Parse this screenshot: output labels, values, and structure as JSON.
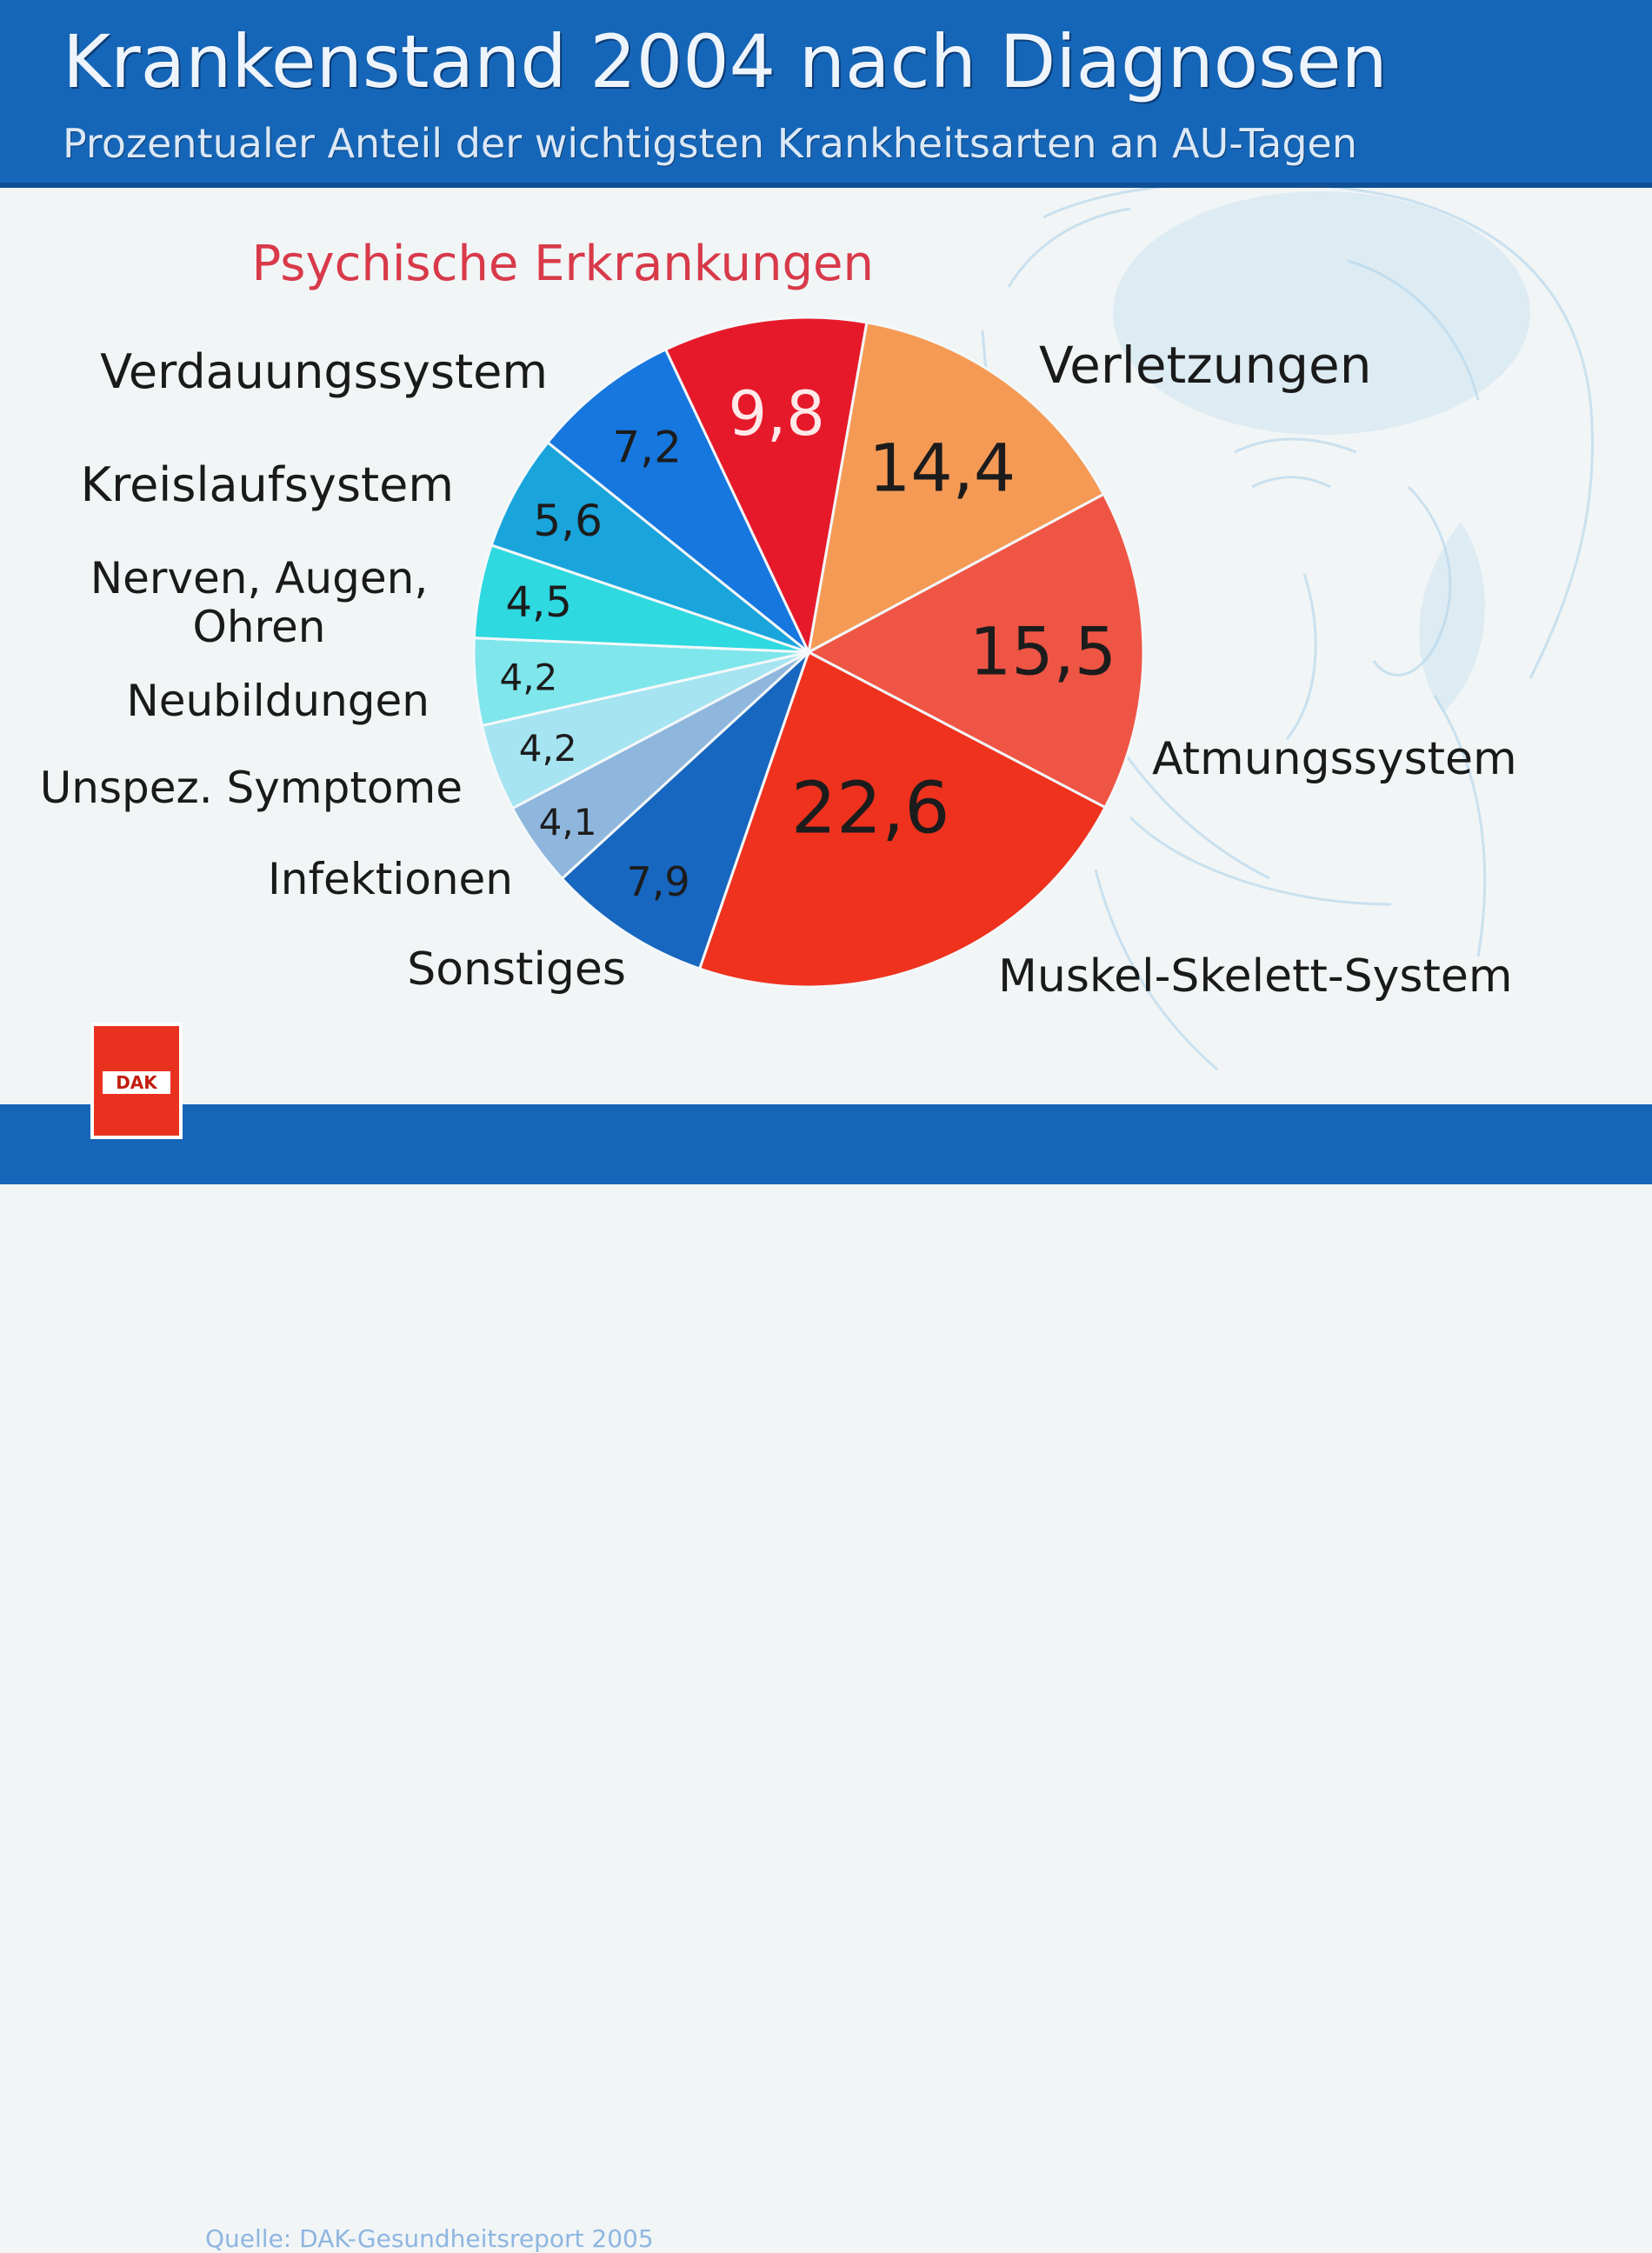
{
  "header": {
    "title": "Krankenstand 2004 nach Diagnosen",
    "subtitle": "Prozentualer Anteil der wichtigsten Krankheitsarten an AU-Tagen"
  },
  "footer": {
    "source": "Quelle: DAK-Gesundheitsreport 2005",
    "logo": "DAK"
  },
  "colors": {
    "header": "#1566b8",
    "highlight_label": "#d83a4a"
  },
  "chart_data": {
    "type": "pie",
    "title": "Krankenstand 2004 nach Diagnosen",
    "subtitle": "Prozentualer Anteil der wichtigsten Krankheitsarten an AU-Tagen",
    "slices": [
      {
        "label": "Verletzungen",
        "value": 14.4,
        "value_label": "14,4",
        "color": "#f59a55"
      },
      {
        "label": "Atmungssystem",
        "value": 15.5,
        "value_label": "15,5",
        "color": "#ef5545"
      },
      {
        "label": "Muskel-Skelett-System",
        "value": 22.6,
        "value_label": "22,6",
        "color": "#ee321e"
      },
      {
        "label": "Sonstiges",
        "value": 7.9,
        "value_label": "7,9",
        "color": "#1767c0"
      },
      {
        "label": "Infektionen",
        "value": 4.1,
        "value_label": "4,1",
        "color": "#8fb7dd"
      },
      {
        "label": "Unspez. Symptome",
        "value": 4.2,
        "value_label": "4,2",
        "color": "#a5e4f0"
      },
      {
        "label": "Neubildungen",
        "value": 4.2,
        "value_label": "4,2",
        "color": "#7fe6ec"
      },
      {
        "label": "Nerven, Augen, Ohren",
        "label_lines": [
          "Nerven, Augen,",
          "Ohren"
        ],
        "value": 4.5,
        "value_label": "4,5",
        "color": "#2ed9e0"
      },
      {
        "label": "Kreislaufsystem",
        "value": 5.6,
        "value_label": "5,6",
        "color": "#1aa4dc"
      },
      {
        "label": "Verdauungssystem",
        "value": 7.2,
        "value_label": "7,2",
        "color": "#1677df"
      },
      {
        "label": "Psychische Erkrankungen",
        "value": 9.8,
        "value_label": "9,8",
        "color": "#e6192a",
        "highlight": true
      }
    ],
    "legend": "none",
    "unit": "%"
  }
}
